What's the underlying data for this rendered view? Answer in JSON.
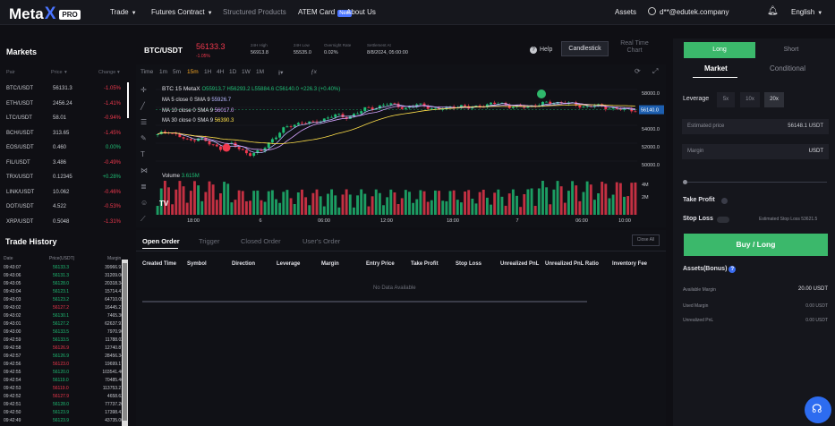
{
  "nav": {
    "logo": "Meta",
    "logo_x": "X",
    "logo_badge": "PRO",
    "items": [
      "Trade",
      "Futures Contract",
      "Structured Products",
      "ATEM Card",
      "About Us"
    ],
    "new_badge": "New",
    "assets": "Assets",
    "user": "d**@edutek.company",
    "language": "English"
  },
  "markets": {
    "title": "Markets",
    "head_pair": "Pair",
    "head_price": "Price",
    "head_change": "Change",
    "rows": [
      {
        "pair": "BTC/USDT",
        "price": "56131.3",
        "change": "-1.05%",
        "dir": "down"
      },
      {
        "pair": "ETH/USDT",
        "price": "2456.24",
        "change": "-1.41%",
        "dir": "down"
      },
      {
        "pair": "LTC/USDT",
        "price": "58.01",
        "change": "-0.94%",
        "dir": "down"
      },
      {
        "pair": "BCH/USDT",
        "price": "313.65",
        "change": "-1.45%",
        "dir": "down"
      },
      {
        "pair": "EOS/USDT",
        "price": "0.460",
        "change": "0.00%",
        "dir": "up"
      },
      {
        "pair": "FIL/USDT",
        "price": "3.486",
        "change": "-0.49%",
        "dir": "down"
      },
      {
        "pair": "TRX/USDT",
        "price": "0.12345",
        "change": "+0.28%",
        "dir": "up"
      },
      {
        "pair": "LINK/USDT",
        "price": "10.062",
        "change": "-0.46%",
        "dir": "down"
      },
      {
        "pair": "DOT/USDT",
        "price": "4.522",
        "change": "-0.53%",
        "dir": "down"
      },
      {
        "pair": "XRP/USDT",
        "price": "0.5048",
        "change": "-1.31%",
        "dir": "down"
      }
    ]
  },
  "history": {
    "title": "Trade History",
    "head_date": "Date",
    "head_price": "Price(USDT)",
    "head_margin": "Margin",
    "rows": [
      {
        "time": "09:43:07",
        "price": "56133.3",
        "margin": "39966.91",
        "dir": "up"
      },
      {
        "time": "09:43:06",
        "price": "56131.3",
        "margin": "31209.00",
        "dir": "up"
      },
      {
        "time": "09:43:05",
        "price": "56128.0",
        "margin": "20318.34",
        "dir": "up"
      },
      {
        "time": "09:43:04",
        "price": "56123.1",
        "margin": "15714.47",
        "dir": "up"
      },
      {
        "time": "09:43:03",
        "price": "56123.2",
        "margin": "64710.05",
        "dir": "up"
      },
      {
        "time": "09:43:02",
        "price": "56127.2",
        "margin": "16445.21",
        "dir": "down"
      },
      {
        "time": "09:43:02",
        "price": "56130.1",
        "margin": "7465.30",
        "dir": "up"
      },
      {
        "time": "09:43:01",
        "price": "56127.2",
        "margin": "62637.91",
        "dir": "up"
      },
      {
        "time": "09:43:00",
        "price": "56133.5",
        "margin": "7970.96",
        "dir": "up"
      },
      {
        "time": "09:42:59",
        "price": "56133.5",
        "margin": "11788.02",
        "dir": "up"
      },
      {
        "time": "09:42:58",
        "price": "56126.9",
        "margin": "12740.87",
        "dir": "down"
      },
      {
        "time": "09:42:57",
        "price": "56126.9",
        "margin": "28456.34",
        "dir": "up"
      },
      {
        "time": "09:42:56",
        "price": "56123.0",
        "margin": "19699.17",
        "dir": "down"
      },
      {
        "time": "09:42:55",
        "price": "56120.0",
        "margin": "103541.40",
        "dir": "up"
      },
      {
        "time": "09:42:54",
        "price": "56119.0",
        "margin": "70485.46",
        "dir": "up"
      },
      {
        "time": "09:42:53",
        "price": "56119.0",
        "margin": "113753.21",
        "dir": "down"
      },
      {
        "time": "09:42:52",
        "price": "56127.9",
        "margin": "4658.62",
        "dir": "down"
      },
      {
        "time": "09:42:51",
        "price": "56128.0",
        "margin": "77737.20",
        "dir": "up"
      },
      {
        "time": "09:42:50",
        "price": "56123.9",
        "margin": "17398.41",
        "dir": "up"
      },
      {
        "time": "09:42:49",
        "price": "56123.9",
        "margin": "43735.00",
        "dir": "up"
      }
    ]
  },
  "ticker": {
    "pair": "BTC/USDT",
    "price": "56133.3",
    "change": "-1.05%",
    "high_label": "24H High",
    "high": "56913.8",
    "low_label": "24H Low",
    "low": "55535.0",
    "rate_label": "Overnight Rate",
    "rate": "0.02%",
    "settle_label": "Settlement At",
    "settle": "8/8/2024, 05:00:00",
    "help": "Help",
    "candlestick": "Candlestick",
    "realtime": "Real Time Chart"
  },
  "chart_toolbar": {
    "time": "Time",
    "intervals": [
      "1m",
      "5m",
      "15m",
      "1H",
      "4H",
      "1D",
      "1W",
      "1M"
    ],
    "active_interval": "15m"
  },
  "chart": {
    "legend": "BTC 15 MetaX",
    "ohlc": "O55913.7 H56293.2 L55884.6 C56140.0 +226.3 (+0.40%)",
    "ma5": "MA 5 close 0 SMA 9",
    "ma5_val": "55926.7",
    "ma10": "MA 10 close 0 SMA 9",
    "ma10_val": "56017.0",
    "ma30": "MA 30 close 0 SMA 9",
    "ma30_val": "56390.3",
    "volume_label": "Volume",
    "volume_val": "3.615M",
    "price_ticks": [
      "58000.0",
      "56000.0",
      "54000.0",
      "52000.0",
      "50000.0"
    ],
    "last_price_tag": "56140.0",
    "vol_ticks": [
      "4M",
      "2M"
    ],
    "time_ticks": [
      "18:00",
      "6",
      "06:00",
      "12:00",
      "18:00",
      "7",
      "06:00",
      "10:00"
    ]
  },
  "chart_data": {
    "type": "candlestick",
    "ylim": [
      49000,
      59000
    ],
    "series_close": [
      53300,
      53800,
      53200,
      52600,
      53100,
      52300,
      51800,
      52400,
      51600,
      51200,
      51500,
      52800,
      53900,
      54400,
      54800,
      54600,
      55100,
      55600,
      55200,
      55700,
      56200,
      56400,
      56800,
      56600,
      56300,
      56700,
      56500,
      56100,
      56400,
      56600,
      56300,
      56600,
      56700,
      56900,
      56500,
      56400,
      56600,
      56800,
      56900,
      57000,
      56700,
      56500,
      56600,
      56400,
      56300,
      56100,
      56140
    ],
    "volume_max": 4000000
  },
  "orders": {
    "tabs": [
      "Open Order",
      "Trigger",
      "Closed Order",
      "User's Order"
    ],
    "close_all": "Close All",
    "columns": [
      "Created Time",
      "Symbol",
      "Direction",
      "Leverage",
      "Margin",
      "Entry Price",
      "Take Profit",
      "Stop Loss",
      "Unrealized PnL",
      "Unrealized PnL Ratio",
      "Inventory Fee"
    ],
    "no_data": "No Data Available"
  },
  "right_panel": {
    "long_tab": "Long",
    "short_tab": "Short",
    "market_tab": "Market",
    "conditional_tab": "Conditional",
    "leverage_label": "Leverage",
    "leverage_options": [
      "5x",
      "10x",
      "20x"
    ],
    "leverage_selected": "20x",
    "est_price_label": "Estimated price",
    "est_price_val": "56148.1 USDT",
    "margin_label": "Margin",
    "margin_unit": "USDT",
    "take_profit": "Take Profit",
    "stop_loss": "Stop Loss",
    "est_stop_loss": "Estimated Stop Loss 53621.5",
    "buy_button": "Buy / Long",
    "assets_title": "Assets(Bonus)",
    "available_label": "Available Margin",
    "available_val": "20.00 USDT",
    "used_label": "Used Margin",
    "used_val": "0.00 USDT",
    "unrealized_label": "Unrealized PnL",
    "unrealized_val": "0.00 USDT",
    "accent": "#3bb86b"
  }
}
